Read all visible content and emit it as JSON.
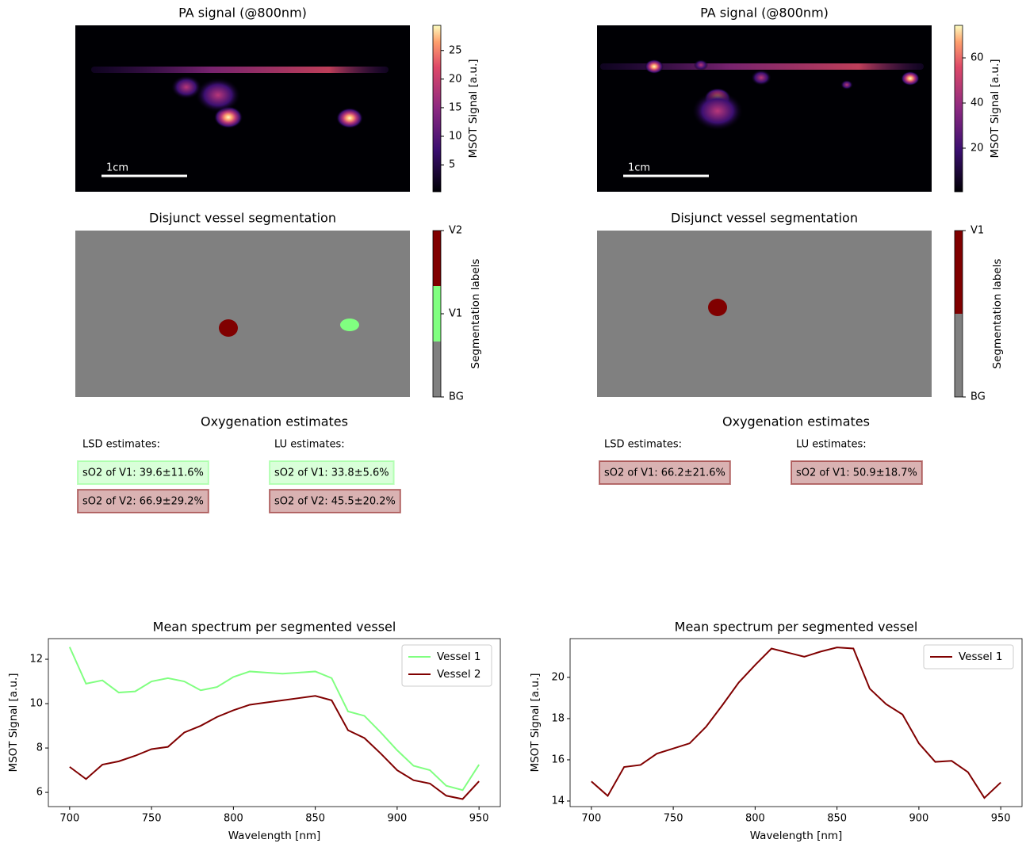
{
  "chart_data": [
    {
      "type": "image",
      "title": "PA signal (@800nm)",
      "colorbar_label": "MSOT Signal [a.u.]",
      "colormap": "magma",
      "clim": [
        0.3,
        29.4
      ],
      "cticks": [
        5,
        10,
        15,
        20,
        25
      ],
      "scalebar_label": "1cm"
    },
    {
      "type": "image",
      "title": "PA signal (@800nm)",
      "colorbar_label": "MSOT Signal [a.u.]",
      "colormap": "magma",
      "clim": [
        0.7,
        74.4
      ],
      "cticks": [
        20,
        40,
        60
      ],
      "scalebar_label": "1cm"
    },
    {
      "type": "segmentation",
      "title": "Disjunct vessel segmentation",
      "colorbar_label": "Segmentation labels",
      "labels": [
        "BG",
        "V1",
        "V2"
      ],
      "colors": [
        "#808080",
        "#80ff80",
        "#800000"
      ]
    },
    {
      "type": "segmentation",
      "title": "Disjunct vessel segmentation",
      "colorbar_label": "Segmentation labels",
      "labels": [
        "BG",
        "V1"
      ],
      "colors": [
        "#808080",
        "#800000"
      ]
    },
    {
      "type": "text",
      "title": "Oxygenation estimates",
      "columns": [
        {
          "heading": "LSD estimates:",
          "entries": [
            {
              "text": "sO2 of V1: 39.6±11.6%",
              "color": "#80ff80"
            },
            {
              "text": "sO2 of V2: 66.9±29.2%",
              "color": "#800000"
            }
          ]
        },
        {
          "heading": "LU estimates:",
          "entries": [
            {
              "text": "sO2 of V1: 33.8±5.6%",
              "color": "#80ff80"
            },
            {
              "text": "sO2 of V2: 45.5±20.2%",
              "color": "#800000"
            }
          ]
        }
      ]
    },
    {
      "type": "text",
      "title": "Oxygenation estimates",
      "columns": [
        {
          "heading": "LSD estimates:",
          "entries": [
            {
              "text": "sO2 of V1: 66.2±21.6%",
              "color": "#800000"
            }
          ]
        },
        {
          "heading": "LU estimates:",
          "entries": [
            {
              "text": "sO2 of V1: 50.9±18.7%",
              "color": "#800000"
            }
          ]
        }
      ]
    },
    {
      "type": "line",
      "title": "Mean spectrum per segmented vessel",
      "xlabel": "Wavelength [nm]",
      "ylabel": "MSOT Signal [a.u.]",
      "x": [
        700,
        710,
        720,
        730,
        740,
        750,
        760,
        770,
        780,
        790,
        800,
        810,
        820,
        830,
        840,
        850,
        860,
        870,
        880,
        890,
        900,
        910,
        920,
        930,
        940,
        950
      ],
      "xlim": [
        687,
        963
      ],
      "xticks": [
        700,
        750,
        800,
        850,
        900,
        950
      ],
      "ylim": [
        5.36,
        12.93
      ],
      "yticks": [
        6,
        8,
        10,
        12
      ],
      "legend": "upper right",
      "series": [
        {
          "name": "Vessel 1",
          "color": "#80ff80",
          "values": [
            12.55,
            10.9,
            11.05,
            10.5,
            10.55,
            11.0,
            11.15,
            11.0,
            10.6,
            10.75,
            11.2,
            11.45,
            11.4,
            11.35,
            11.4,
            11.45,
            11.15,
            9.65,
            9.45,
            8.7,
            7.9,
            7.2,
            7.0,
            6.3,
            6.1,
            7.25
          ]
        },
        {
          "name": "Vessel 2",
          "color": "#800000",
          "values": [
            7.15,
            6.6,
            7.25,
            7.4,
            7.65,
            7.95,
            8.05,
            8.7,
            9.0,
            9.4,
            9.7,
            9.95,
            10.05,
            10.15,
            10.25,
            10.35,
            10.15,
            8.8,
            8.45,
            7.75,
            7.0,
            6.55,
            6.4,
            5.85,
            5.7,
            6.5
          ]
        }
      ]
    },
    {
      "type": "line",
      "title": "Mean spectrum per segmented vessel",
      "xlabel": "Wavelength [nm]",
      "ylabel": "MSOT Signal [a.u.]",
      "x": [
        700,
        710,
        720,
        730,
        740,
        750,
        760,
        770,
        780,
        790,
        800,
        810,
        820,
        830,
        840,
        850,
        860,
        870,
        880,
        890,
        900,
        910,
        920,
        930,
        940,
        950
      ],
      "xlim": [
        687,
        963
      ],
      "xticks": [
        700,
        750,
        800,
        850,
        900,
        950
      ],
      "ylim": [
        13.73,
        21.88
      ],
      "yticks": [
        14,
        16,
        18,
        20
      ],
      "legend": "upper right",
      "series": [
        {
          "name": "Vessel 1",
          "color": "#800000",
          "values": [
            14.95,
            14.25,
            15.65,
            15.75,
            16.3,
            16.55,
            16.8,
            17.6,
            18.65,
            19.75,
            20.6,
            21.4,
            21.2,
            21.0,
            21.25,
            21.45,
            21.4,
            19.45,
            18.7,
            18.2,
            16.8,
            15.9,
            15.95,
            15.4,
            14.15,
            14.9
          ]
        }
      ]
    }
  ]
}
